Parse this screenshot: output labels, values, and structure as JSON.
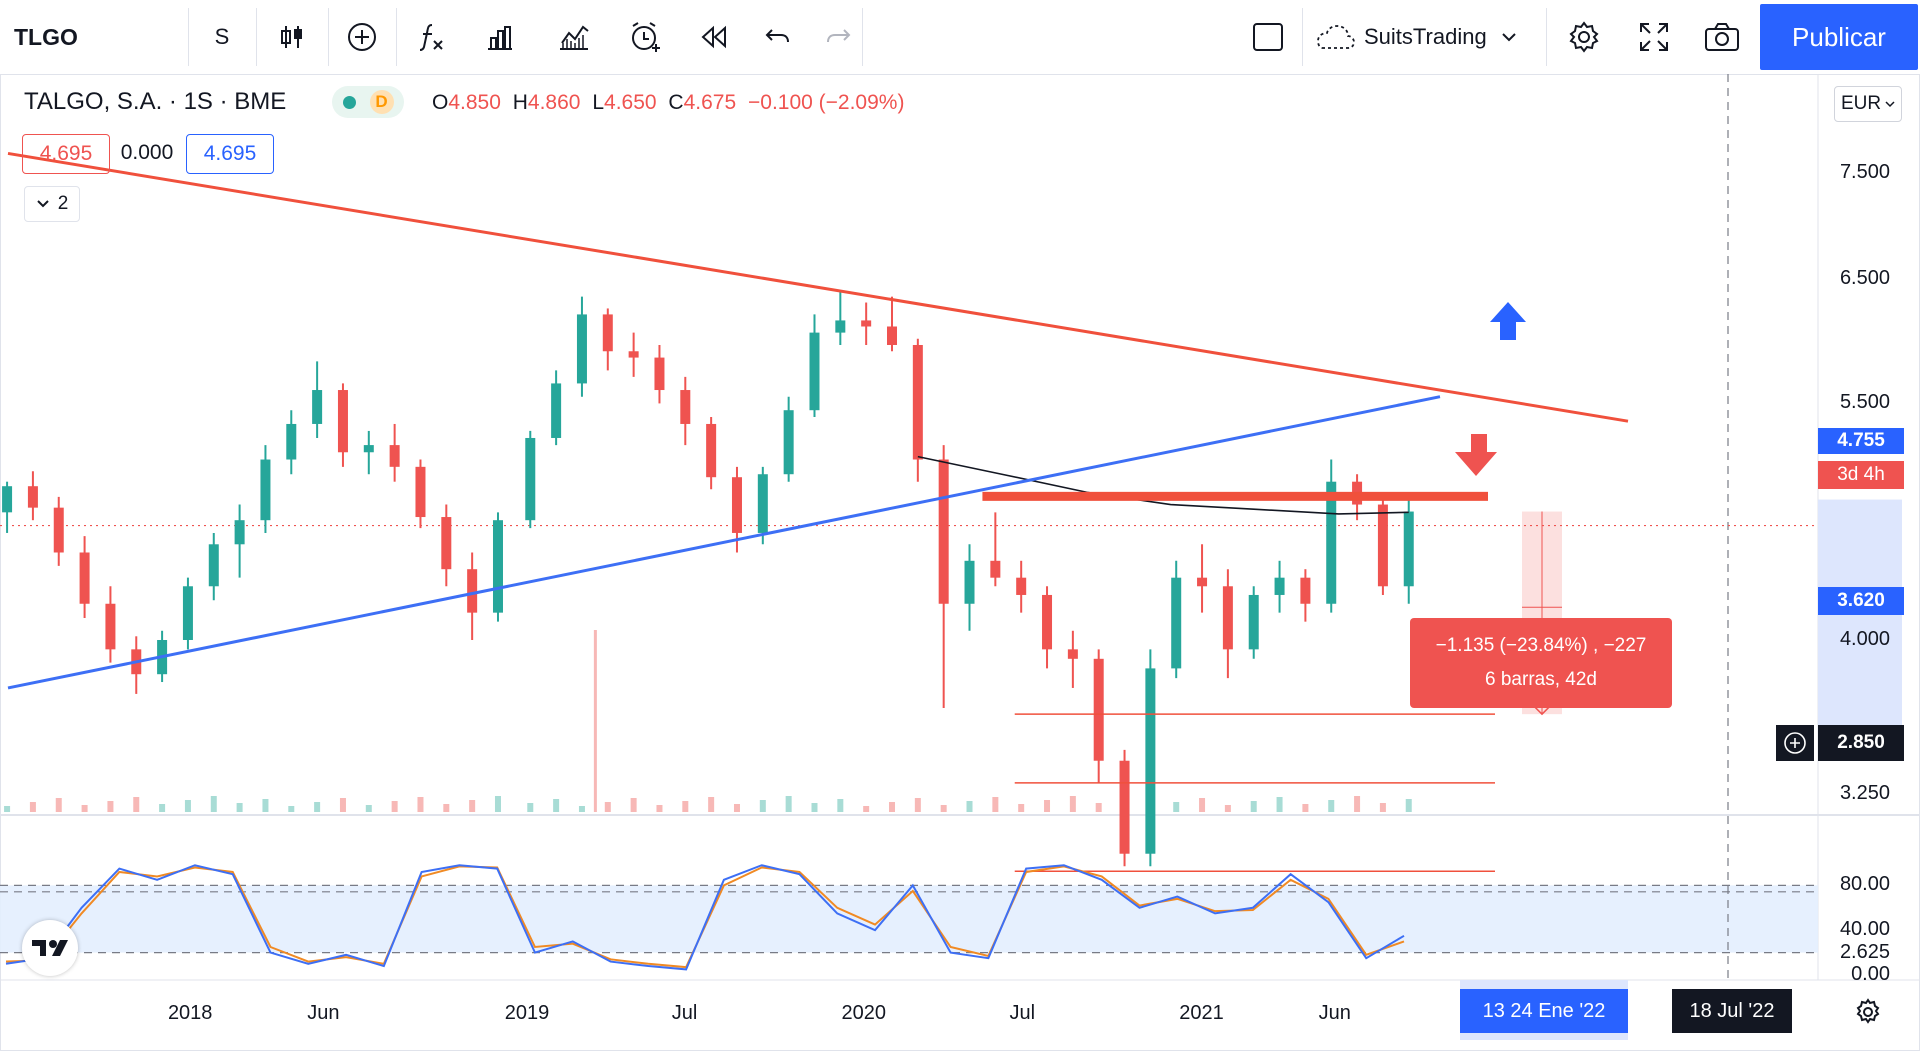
{
  "toolbar": {
    "symbol": "TLGO",
    "interval": "S",
    "chart_type_icon": "candles-icon",
    "add_icon": "plus-circle-icon",
    "indicators_icon": "fx-icon",
    "templates_icon": "bars-icon",
    "compare_icon": "compare-icon",
    "alert_icon": "alarm-clock-icon",
    "replay_icon": "rewind-icon",
    "undo_icon": "undo-icon",
    "redo_icon": "redo-icon",
    "layout_icon": "square-icon",
    "layout_name": "SuitsTrading",
    "settings_icon": "gear-icon",
    "fullscreen_icon": "fullscreen-icon",
    "snapshot_icon": "camera-icon",
    "publish_label": "Publicar"
  },
  "legend": {
    "name": "TALGO, S.A. · 1S · BME",
    "open_label": "O",
    "open": "4.850",
    "high_label": "H",
    "high": "4.860",
    "low_label": "L",
    "low": "4.650",
    "close_label": "C",
    "close": "4.675",
    "change": "−0.100 (−2.09%)",
    "delay_badge": "D",
    "bid": "4.695",
    "spread": "0.000",
    "ask": "4.695",
    "indicators_toggle": "2"
  },
  "currency": "EUR",
  "measure": {
    "line1": "−1.135 (−23.84%) , −227",
    "line2": "6 barras, 42d"
  },
  "price_badges": {
    "last_price": "4.755",
    "countdown": "3d 4h",
    "target": "3.620",
    "crosshair": "2.850"
  },
  "time_badges": {
    "range": "13  24 Ene '22",
    "crosshair": "18 Jul '22"
  },
  "colors": {
    "up": "#26a69a",
    "down": "#ef5350",
    "resistance": "#f0503c",
    "support": "#3d6ff5",
    "stoch_k": "#3d6ff5",
    "stoch_d": "#f08a24",
    "accent": "#2962ff"
  },
  "chart_data": [
    {
      "type": "candlestick",
      "title": "TALGO, S.A. · 1S · BME",
      "y_scale": "log",
      "ylim": [
        2.55,
        8.4
      ],
      "y_ticks": [
        "7.500",
        "6.500",
        "5.500",
        "5.000",
        "4.000",
        "3.250",
        "2.625"
      ],
      "x_ticks": [
        "2018",
        "Jun",
        "2019",
        "Jul",
        "2020",
        "Jul",
        "2021",
        "Jun"
      ],
      "x_range": [
        "2017-06-20",
        "2022-10-01"
      ],
      "ohlc_weekly_approx": [
        [
          "2017-06-19",
          4.75,
          4.95,
          4.62,
          4.92
        ],
        [
          "2017-07-17",
          4.92,
          5.02,
          4.7,
          4.78
        ],
        [
          "2017-08-14",
          4.78,
          4.85,
          4.42,
          4.5
        ],
        [
          "2017-09-11",
          4.5,
          4.6,
          4.12,
          4.2
        ],
        [
          "2017-10-09",
          4.2,
          4.3,
          3.88,
          3.95
        ],
        [
          "2017-11-06",
          3.95,
          4.02,
          3.72,
          3.82
        ],
        [
          "2017-12-04",
          3.82,
          4.05,
          3.78,
          4.0
        ],
        [
          "2018-01-01",
          4.0,
          4.35,
          3.95,
          4.3
        ],
        [
          "2018-01-29",
          4.3,
          4.62,
          4.22,
          4.55
        ],
        [
          "2018-02-26",
          4.55,
          4.8,
          4.35,
          4.7
        ],
        [
          "2018-03-26",
          4.7,
          5.2,
          4.62,
          5.1
        ],
        [
          "2018-04-23",
          5.1,
          5.45,
          5.0,
          5.35
        ],
        [
          "2018-05-21",
          5.35,
          5.82,
          5.25,
          5.6
        ],
        [
          "2018-06-18",
          5.6,
          5.65,
          5.05,
          5.15
        ],
        [
          "2018-07-16",
          5.15,
          5.3,
          5.0,
          5.2
        ],
        [
          "2018-08-13",
          5.2,
          5.35,
          4.95,
          5.05
        ],
        [
          "2018-09-10",
          5.05,
          5.1,
          4.65,
          4.72
        ],
        [
          "2018-10-08",
          4.72,
          4.8,
          4.3,
          4.4
        ],
        [
          "2018-11-05",
          4.4,
          4.5,
          4.0,
          4.15
        ],
        [
          "2018-12-03",
          4.15,
          4.75,
          4.1,
          4.7
        ],
        [
          "2019-01-07",
          4.7,
          5.3,
          4.65,
          5.25
        ],
        [
          "2019-02-04",
          5.25,
          5.75,
          5.2,
          5.65
        ],
        [
          "2019-03-04",
          5.65,
          6.35,
          5.55,
          6.2
        ],
        [
          "2019-04-01",
          6.2,
          6.25,
          5.75,
          5.9
        ],
        [
          "2019-04-29",
          5.9,
          6.05,
          5.7,
          5.85
        ],
        [
          "2019-05-27",
          5.85,
          5.95,
          5.5,
          5.6
        ],
        [
          "2019-06-24",
          5.6,
          5.7,
          5.2,
          5.35
        ],
        [
          "2019-07-22",
          5.35,
          5.4,
          4.9,
          4.98
        ],
        [
          "2019-08-19",
          4.98,
          5.05,
          4.5,
          4.62
        ],
        [
          "2019-09-16",
          4.62,
          5.05,
          4.55,
          5.0
        ],
        [
          "2019-10-14",
          5.0,
          5.55,
          4.95,
          5.45
        ],
        [
          "2019-11-11",
          5.45,
          6.2,
          5.4,
          6.05
        ],
        [
          "2019-12-09",
          6.05,
          6.4,
          5.95,
          6.15
        ],
        [
          "2020-01-06",
          6.15,
          6.3,
          5.95,
          6.1
        ],
        [
          "2020-02-03",
          6.1,
          6.35,
          5.9,
          5.95
        ],
        [
          "2020-03-02",
          5.95,
          6.0,
          4.95,
          5.1
        ],
        [
          "2020-03-30",
          5.1,
          5.2,
          3.65,
          4.2
        ],
        [
          "2020-04-27",
          4.2,
          4.55,
          4.05,
          4.45
        ],
        [
          "2020-05-25",
          4.45,
          4.75,
          4.3,
          4.35
        ],
        [
          "2020-06-22",
          4.35,
          4.45,
          4.15,
          4.25
        ],
        [
          "2020-07-20",
          4.25,
          4.3,
          3.85,
          3.95
        ],
        [
          "2020-08-17",
          3.95,
          4.05,
          3.75,
          3.9
        ],
        [
          "2020-09-14",
          3.9,
          3.95,
          3.3,
          3.4
        ],
        [
          "2020-10-12",
          3.4,
          3.45,
          2.95,
          3.0
        ],
        [
          "2020-11-09",
          3.0,
          3.95,
          2.95,
          3.85
        ],
        [
          "2020-12-07",
          3.85,
          4.45,
          3.8,
          4.35
        ],
        [
          "2021-01-04",
          4.35,
          4.55,
          4.15,
          4.3
        ],
        [
          "2021-02-01",
          4.3,
          4.4,
          3.8,
          3.95
        ],
        [
          "2021-03-01",
          3.95,
          4.3,
          3.9,
          4.25
        ],
        [
          "2021-03-29",
          4.25,
          4.45,
          4.15,
          4.35
        ],
        [
          "2021-04-26",
          4.35,
          4.4,
          4.1,
          4.2
        ],
        [
          "2021-05-24",
          4.2,
          5.1,
          4.15,
          4.95
        ],
        [
          "2021-06-21",
          4.95,
          5.0,
          4.7,
          4.8
        ],
        [
          "2021-07-19",
          4.8,
          4.85,
          4.25,
          4.3
        ],
        [
          "2021-08-16",
          4.3,
          4.85,
          4.2,
          4.755
        ]
      ]
    },
    {
      "type": "line",
      "title": "Stochastic",
      "ylim": [
        0,
        100
      ],
      "y_ticks": [
        "80.00",
        "40.00",
        "0.00"
      ],
      "bands": [
        20,
        80
      ],
      "series": [
        {
          "values": [
            10,
            15,
            60,
            95,
            85,
            98,
            90,
            20,
            10,
            18,
            8,
            92,
            98,
            95,
            20,
            30,
            12,
            8,
            5,
            85,
            98,
            90,
            55,
            40,
            80,
            20,
            15,
            95,
            98,
            85,
            60,
            70,
            55,
            60,
            90,
            65,
            15,
            35
          ]
        },
        {
          "values": [
            12,
            13,
            55,
            92,
            88,
            96,
            92,
            25,
            12,
            16,
            10,
            88,
            97,
            96,
            25,
            28,
            14,
            10,
            7,
            80,
            96,
            92,
            60,
            45,
            75,
            25,
            17,
            92,
            97,
            88,
            62,
            68,
            57,
            58,
            85,
            68,
            18,
            30
          ]
        }
      ]
    }
  ]
}
